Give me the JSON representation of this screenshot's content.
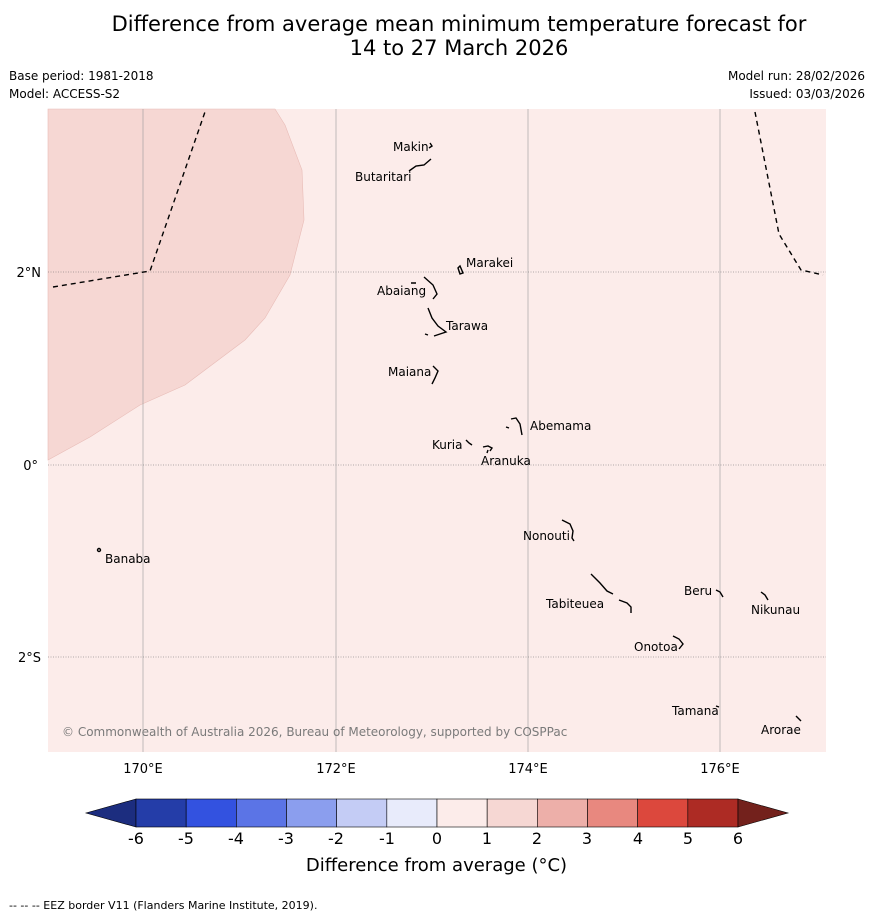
{
  "title_line1": "Difference from average mean minimum temperature forecast for",
  "title_line2": "14 to 27 March 2026",
  "meta": {
    "base_period": "Base period: 1981-2018",
    "model": "Model: ACCESS-S2",
    "model_run": "Model run: 28/02/2026",
    "issued": "Issued: 03/03/2026"
  },
  "map": {
    "lon_ticks": [
      "170°E",
      "172°E",
      "174°E",
      "176°E"
    ],
    "lat_ticks": [
      "2°N",
      "0°",
      "2°S"
    ],
    "places": [
      "Makin",
      "Butaritari",
      "Marakei",
      "Abaiang",
      "Tarawa",
      "Maiana",
      "Abemama",
      "Kuria",
      "Aranuka",
      "Banaba",
      "Nonouti",
      "Tabiteuea",
      "Beru",
      "Nikunau",
      "Onotoa",
      "Tamana",
      "Arorae"
    ],
    "copyright": "© Commonwealth of Australia 2026, Bureau of Meteorology, supported by COSPPac",
    "colors": {
      "background_anomaly": "#fcecea",
      "warm_anomaly": "#f6d7d3"
    }
  },
  "colorbar": {
    "ticks": [
      "-6",
      "-5",
      "-4",
      "-3",
      "-2",
      "-1",
      "0",
      "1",
      "2",
      "3",
      "4",
      "5",
      "6"
    ],
    "colors": [
      "#1c2d7f",
      "#243da8",
      "#3352e0",
      "#5b74e6",
      "#8b9eee",
      "#c4ccf5",
      "#e8ebfb",
      "#fcecea",
      "#f6d7d3",
      "#edafa9",
      "#e8887f",
      "#dc483d",
      "#ad2b24",
      "#73211c"
    ],
    "label": "Difference from average (°C)"
  },
  "footer": "--  --  -- EEZ border V11 (Flanders Marine Institute, 2019)."
}
